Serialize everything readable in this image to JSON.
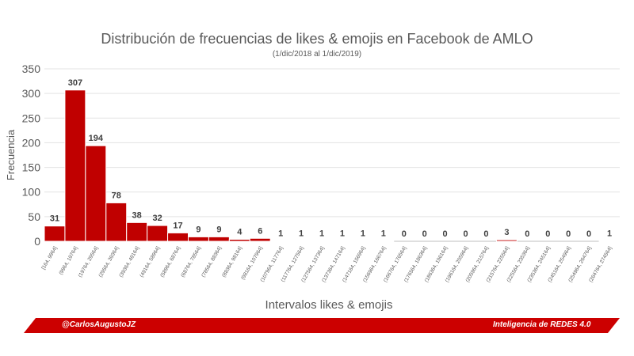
{
  "chart_data": {
    "type": "bar",
    "title": "Distribución de frecuencias de likes & emojis en Facebook de AMLO",
    "subtitle": "(1/dic/2018 al 1/dic/2019)",
    "xlabel": "Intervalos likes & emojis",
    "ylabel": "Frecuencia",
    "ylim": [
      0,
      350
    ],
    "yticks": [
      0,
      50,
      100,
      150,
      200,
      250,
      300,
      350
    ],
    "grid": true,
    "legend": "none",
    "bar_color": "#c00000",
    "categories": [
      "[164, 9964]",
      "(9964, 19764]",
      "(19764, 29564]",
      "(29564, 39364]",
      "(39364, 49164]",
      "(49164, 58964]",
      "(58964, 68764]",
      "(68764, 78564]",
      "(78564, 88364]",
      "(88364, 98164]",
      "(98164, 107964]",
      "(107964, 117764]",
      "(117764, 127564]",
      "(127564, 137364]",
      "(137364, 147164]",
      "(147164, 156964]",
      "(156964, 166764]",
      "(166764, 176564]",
      "(176564, 186364]",
      "(186364, 196164]",
      "(196164, 205964]",
      "(205964, 215764]",
      "(215764, 225564]",
      "(225564, 235364]",
      "(235364, 245164]",
      "(245164, 254964]",
      "(254964, 264764]",
      "(264764, 274564]"
    ],
    "values": [
      31,
      307,
      194,
      78,
      38,
      32,
      17,
      9,
      9,
      4,
      6,
      1,
      1,
      1,
      1,
      1,
      1,
      0,
      0,
      0,
      0,
      0,
      3,
      0,
      0,
      0,
      0,
      1
    ]
  },
  "footer": {
    "left_text": "@CarlosAugustoJZ",
    "right_text": "Inteligencia de REDES 4.0"
  }
}
